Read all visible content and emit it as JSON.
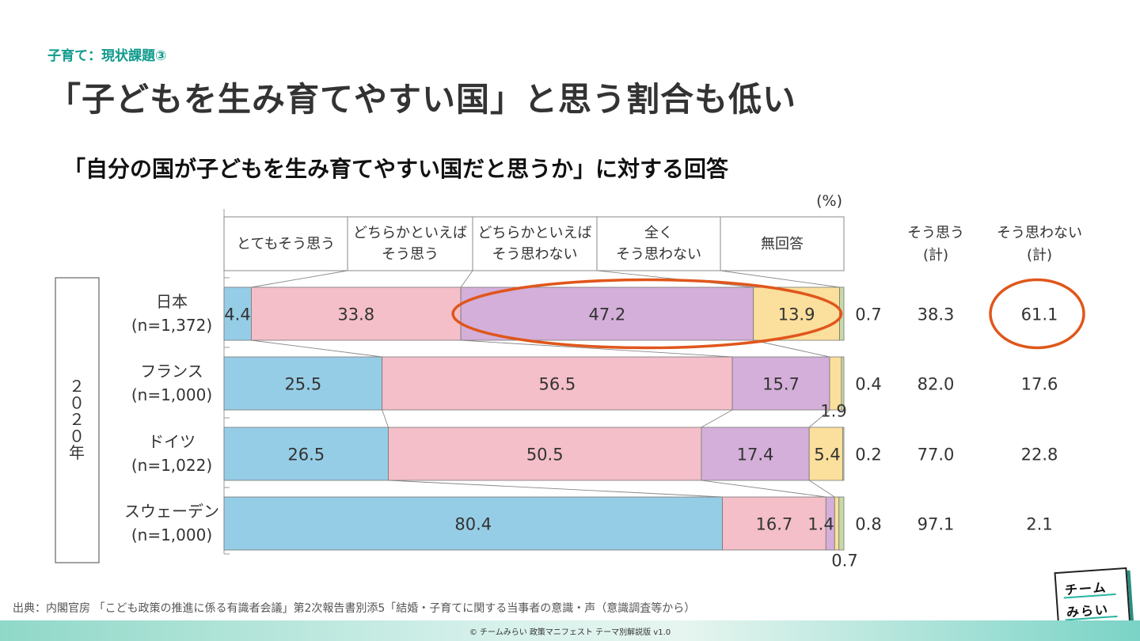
{
  "header": {
    "eyebrow": "子育て：現状課題③",
    "title": "「子どもを生み育てやすい国」と思う割合も低い"
  },
  "chart_heading": "「自分の国が子どもを生み育てやすい国だと思うか」に対する回答",
  "source": "出典：内閣官房 「こども政策の推進に係る有識者会議」第2次報告書別添5「結婚・子育てに関する当事者の意識・声（意識調査等から）",
  "footer": "© チームみらい 政策マニフェスト テーマ別解説版 v1.0",
  "logo": {
    "line1": "チーム",
    "line2": "みらい"
  },
  "colors": {
    "strongly_agree": "#96cde6",
    "somewhat_agree": "#f4bfc8",
    "somewhat_disagree": "#d4afd9",
    "strongly_disagree": "#fbdf9c",
    "no_answer": "#c8d9a8",
    "highlight": "#e0561b"
  },
  "chart_data": {
    "type": "bar",
    "orientation": "horizontal-stacked",
    "unit": "(%)",
    "year_label": "２０２０年",
    "series": [
      {
        "name": "とてもそう思う",
        "values": [
          4.4,
          25.5,
          26.5,
          80.4
        ]
      },
      {
        "name": "どちらかといえばそう思う",
        "values": [
          33.8,
          56.5,
          50.5,
          16.7
        ]
      },
      {
        "name": "どちらかといえばそう思わない",
        "values": [
          47.2,
          15.7,
          17.4,
          1.4
        ]
      },
      {
        "name": "全くそう思わない",
        "values": [
          13.9,
          1.9,
          5.4,
          0.7
        ]
      },
      {
        "name": "無回答",
        "values": [
          0.7,
          0.4,
          0.2,
          0.8
        ]
      }
    ],
    "categories": [
      {
        "name": "日本",
        "n": "(n=1,372)"
      },
      {
        "name": "フランス",
        "n": "(n=1,000)"
      },
      {
        "name": "ドイツ",
        "n": "(n=1,022)"
      },
      {
        "name": "スウェーデン",
        "n": "(n=1,000)"
      }
    ],
    "legend_headers": [
      [
        "とてもそう思う"
      ],
      [
        "どちらかといえば",
        "そう思う"
      ],
      [
        "どちらかといえば",
        "そう思わない"
      ],
      [
        "全く",
        "そう思わない"
      ],
      [
        "無回答"
      ]
    ],
    "total_headers": [
      {
        "label": "そう思う",
        "sub": "(計)"
      },
      {
        "label": "そう思わない",
        "sub": "(計)"
      }
    ],
    "no_answer_labels": [
      "0.7",
      "0.4",
      "0.2",
      "0.8"
    ],
    "agree_total": [
      "38.3",
      "82.0",
      "77.0",
      "97.1"
    ],
    "disagree_total": [
      "61.1",
      "17.6",
      "22.8",
      "2.1"
    ],
    "segment_labels": [
      [
        "4.4",
        "33.8",
        "47.2",
        "13.9"
      ],
      [
        "25.5",
        "56.5",
        "15.7",
        "1.9"
      ],
      [
        "26.5",
        "50.5",
        "17.4",
        "5.4"
      ],
      [
        "80.4",
        "16.7",
        "1.4",
        "0.7"
      ]
    ],
    "xlim": [
      0,
      100
    ],
    "highlights": [
      "日本 どちらかといえばそう思わない + 全くそう思わない",
      "日本 そう思わない(計)"
    ]
  }
}
